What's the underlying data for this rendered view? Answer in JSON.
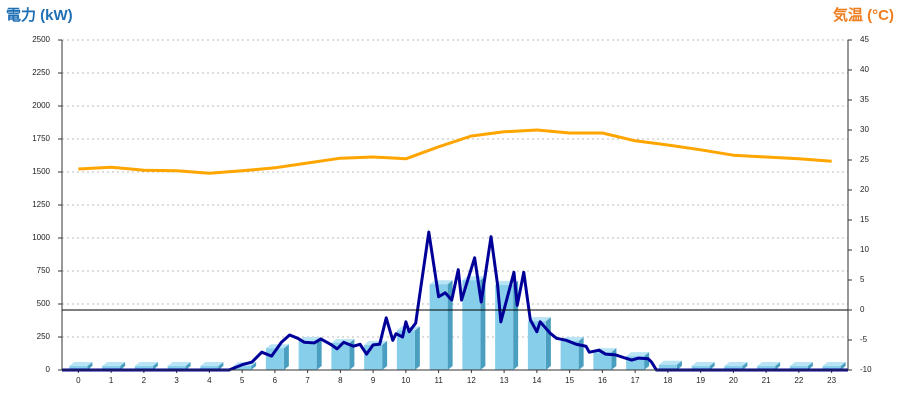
{
  "chart_data": {
    "type": "combo",
    "title": "電力 (kW)",
    "y2_title": "気温 (°C)",
    "xlim": [
      -0.5,
      23.5
    ],
    "xticks": [
      0,
      1,
      2,
      3,
      4,
      5,
      6,
      7,
      8,
      9,
      10,
      11,
      12,
      13,
      14,
      15,
      16,
      17,
      18,
      19,
      20,
      21,
      22,
      23
    ],
    "ylim": [
      0,
      2500
    ],
    "yticks": [
      0,
      250,
      500,
      750,
      1000,
      1250,
      1500,
      1750,
      2000,
      2250,
      2500
    ],
    "y2lim": [
      -10,
      45
    ],
    "y2ticks": [
      -10,
      -5,
      0,
      5,
      10,
      15,
      20,
      25,
      30,
      35,
      40,
      45
    ],
    "y2_reference_line": 0,
    "grid": true,
    "series": [
      {
        "type": "bar",
        "color": "#87ceeb",
        "x": [
          0,
          1,
          2,
          3,
          4,
          5,
          6,
          7,
          8,
          9,
          10,
          11,
          12,
          13,
          14,
          15,
          16,
          17,
          18,
          19,
          20,
          21,
          22,
          23
        ],
        "values": [
          30,
          30,
          30,
          30,
          30,
          30,
          165,
          220,
          205,
          190,
          300,
          650,
          680,
          645,
          370,
          220,
          135,
          105,
          40,
          30,
          30,
          30,
          30,
          30
        ]
      },
      {
        "type": "line",
        "color": "#000099",
        "x": [
          -0.5,
          4.6,
          5.0,
          5.3,
          5.6,
          5.9,
          6.2,
          6.45,
          6.7,
          6.9,
          7.2,
          7.4,
          7.7,
          7.9,
          8.1,
          8.4,
          8.6,
          8.8,
          9.0,
          9.2,
          9.4,
          9.6,
          9.7,
          9.9,
          10.0,
          10.1,
          10.3,
          10.4,
          10.7,
          11.0,
          11.2,
          11.4,
          11.6,
          11.7,
          12.1,
          12.3,
          12.6,
          12.8,
          12.9,
          13.3,
          13.4,
          13.6,
          13.8,
          14.0,
          14.1,
          14.4,
          14.6,
          14.9,
          15.2,
          15.5,
          15.6,
          15.9,
          16.1,
          16.4,
          16.7,
          16.9,
          17.1,
          17.4,
          17.5,
          17.65,
          23.5
        ],
        "values": [
          0,
          0,
          40,
          60,
          135,
          105,
          210,
          265,
          240,
          210,
          205,
          235,
          195,
          160,
          210,
          180,
          195,
          120,
          190,
          195,
          395,
          225,
          275,
          250,
          365,
          290,
          355,
          530,
          1045,
          555,
          585,
          530,
          760,
          530,
          850,
          515,
          1010,
          645,
          365,
          740,
          490,
          740,
          380,
          290,
          365,
          280,
          240,
          225,
          195,
          180,
          135,
          150,
          120,
          115,
          90,
          75,
          90,
          85,
          60,
          0,
          0
        ]
      },
      {
        "type": "line",
        "axis": "y2",
        "color": "#ffa500",
        "x": [
          0,
          1,
          2,
          3,
          4,
          5,
          6,
          7,
          8,
          9,
          10,
          11,
          12,
          13,
          14,
          15,
          16,
          17,
          18,
          19,
          20,
          21,
          22,
          23
        ],
        "values": [
          23.5,
          23.8,
          23.3,
          23.2,
          22.8,
          23.2,
          23.7,
          24.5,
          25.3,
          25.5,
          25.2,
          27.2,
          29.0,
          29.7,
          30.0,
          29.5,
          29.5,
          28.2,
          27.5,
          26.7,
          25.8,
          25.5,
          25.2,
          24.8
        ]
      }
    ]
  }
}
